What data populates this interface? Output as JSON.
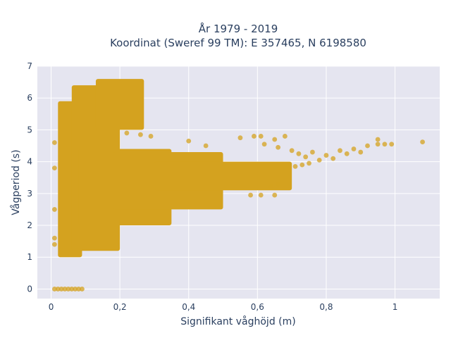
{
  "chart_data": {
    "type": "scatter",
    "title_lines": [
      "År 1979 - 2019",
      "Koordinat (Sweref 99 TM): E 357465, N 6198580"
    ],
    "xlabel": "Signifikant våghöjd (m)",
    "ylabel": "Vågperiod (s)",
    "xlim": [
      -0.04,
      1.13
    ],
    "ylim": [
      -0.3,
      7.0
    ],
    "x_ticks": [
      0,
      0.2,
      0.4,
      0.6,
      0.8,
      1
    ],
    "x_tick_labels": [
      "0",
      "0,2",
      "0,4",
      "0,6",
      "0,8",
      "1"
    ],
    "y_ticks": [
      0,
      1,
      2,
      3,
      4,
      5,
      6,
      7
    ],
    "y_tick_labels": [
      "0",
      "1",
      "2",
      "3",
      "4",
      "5",
      "6",
      "7"
    ],
    "grid": true,
    "background": "#e5e5f0",
    "marker_color": "#d4a21f",
    "marker_opacity": 0.75,
    "dense_regions": [
      {
        "xmin": 0.02,
        "xmax": 0.09,
        "ymin": 1.0,
        "ymax": 5.9
      },
      {
        "xmin": 0.06,
        "xmax": 0.2,
        "ymin": 1.2,
        "ymax": 6.4
      },
      {
        "xmin": 0.13,
        "xmax": 0.27,
        "ymin": 5.0,
        "ymax": 6.6
      },
      {
        "xmin": 0.08,
        "xmax": 0.35,
        "ymin": 2.0,
        "ymax": 4.4
      },
      {
        "xmin": 0.18,
        "xmax": 0.5,
        "ymin": 2.5,
        "ymax": 4.3
      },
      {
        "xmin": 0.3,
        "xmax": 0.7,
        "ymin": 3.1,
        "ymax": 4.0
      }
    ],
    "points": [
      {
        "x": 0.01,
        "y": 0
      },
      {
        "x": 0.02,
        "y": 0
      },
      {
        "x": 0.03,
        "y": 0
      },
      {
        "x": 0.04,
        "y": 0
      },
      {
        "x": 0.05,
        "y": 0
      },
      {
        "x": 0.06,
        "y": 0
      },
      {
        "x": 0.07,
        "y": 0
      },
      {
        "x": 0.08,
        "y": 0
      },
      {
        "x": 0.09,
        "y": 0
      },
      {
        "x": 0.01,
        "y": 1.4
      },
      {
        "x": 0.01,
        "y": 1.6
      },
      {
        "x": 0.01,
        "y": 2.5
      },
      {
        "x": 0.01,
        "y": 3.8
      },
      {
        "x": 0.01,
        "y": 4.6
      },
      {
        "x": 0.22,
        "y": 4.9
      },
      {
        "x": 0.26,
        "y": 4.85
      },
      {
        "x": 0.29,
        "y": 4.8
      },
      {
        "x": 0.4,
        "y": 4.65
      },
      {
        "x": 0.45,
        "y": 4.5
      },
      {
        "x": 0.55,
        "y": 4.75
      },
      {
        "x": 0.59,
        "y": 4.8
      },
      {
        "x": 0.61,
        "y": 4.8
      },
      {
        "x": 0.65,
        "y": 4.7
      },
      {
        "x": 0.68,
        "y": 4.8
      },
      {
        "x": 0.62,
        "y": 4.55
      },
      {
        "x": 0.66,
        "y": 4.45
      },
      {
        "x": 0.7,
        "y": 4.35
      },
      {
        "x": 0.72,
        "y": 4.25
      },
      {
        "x": 0.74,
        "y": 4.15
      },
      {
        "x": 0.76,
        "y": 4.3
      },
      {
        "x": 0.78,
        "y": 4.05
      },
      {
        "x": 0.8,
        "y": 4.2
      },
      {
        "x": 0.82,
        "y": 4.1
      },
      {
        "x": 0.84,
        "y": 4.35
      },
      {
        "x": 0.86,
        "y": 4.25
      },
      {
        "x": 0.88,
        "y": 4.4
      },
      {
        "x": 0.9,
        "y": 4.3
      },
      {
        "x": 0.92,
        "y": 4.5
      },
      {
        "x": 0.95,
        "y": 4.55
      },
      {
        "x": 0.97,
        "y": 4.55
      },
      {
        "x": 0.99,
        "y": 4.55
      },
      {
        "x": 0.95,
        "y": 4.7
      },
      {
        "x": 1.08,
        "y": 4.62
      },
      {
        "x": 0.75,
        "y": 3.95
      },
      {
        "x": 0.73,
        "y": 3.9
      },
      {
        "x": 0.71,
        "y": 3.85
      },
      {
        "x": 0.58,
        "y": 2.95
      },
      {
        "x": 0.61,
        "y": 2.95
      },
      {
        "x": 0.65,
        "y": 2.95
      },
      {
        "x": 0.64,
        "y": 3.2
      },
      {
        "x": 0.66,
        "y": 3.3
      }
    ]
  }
}
